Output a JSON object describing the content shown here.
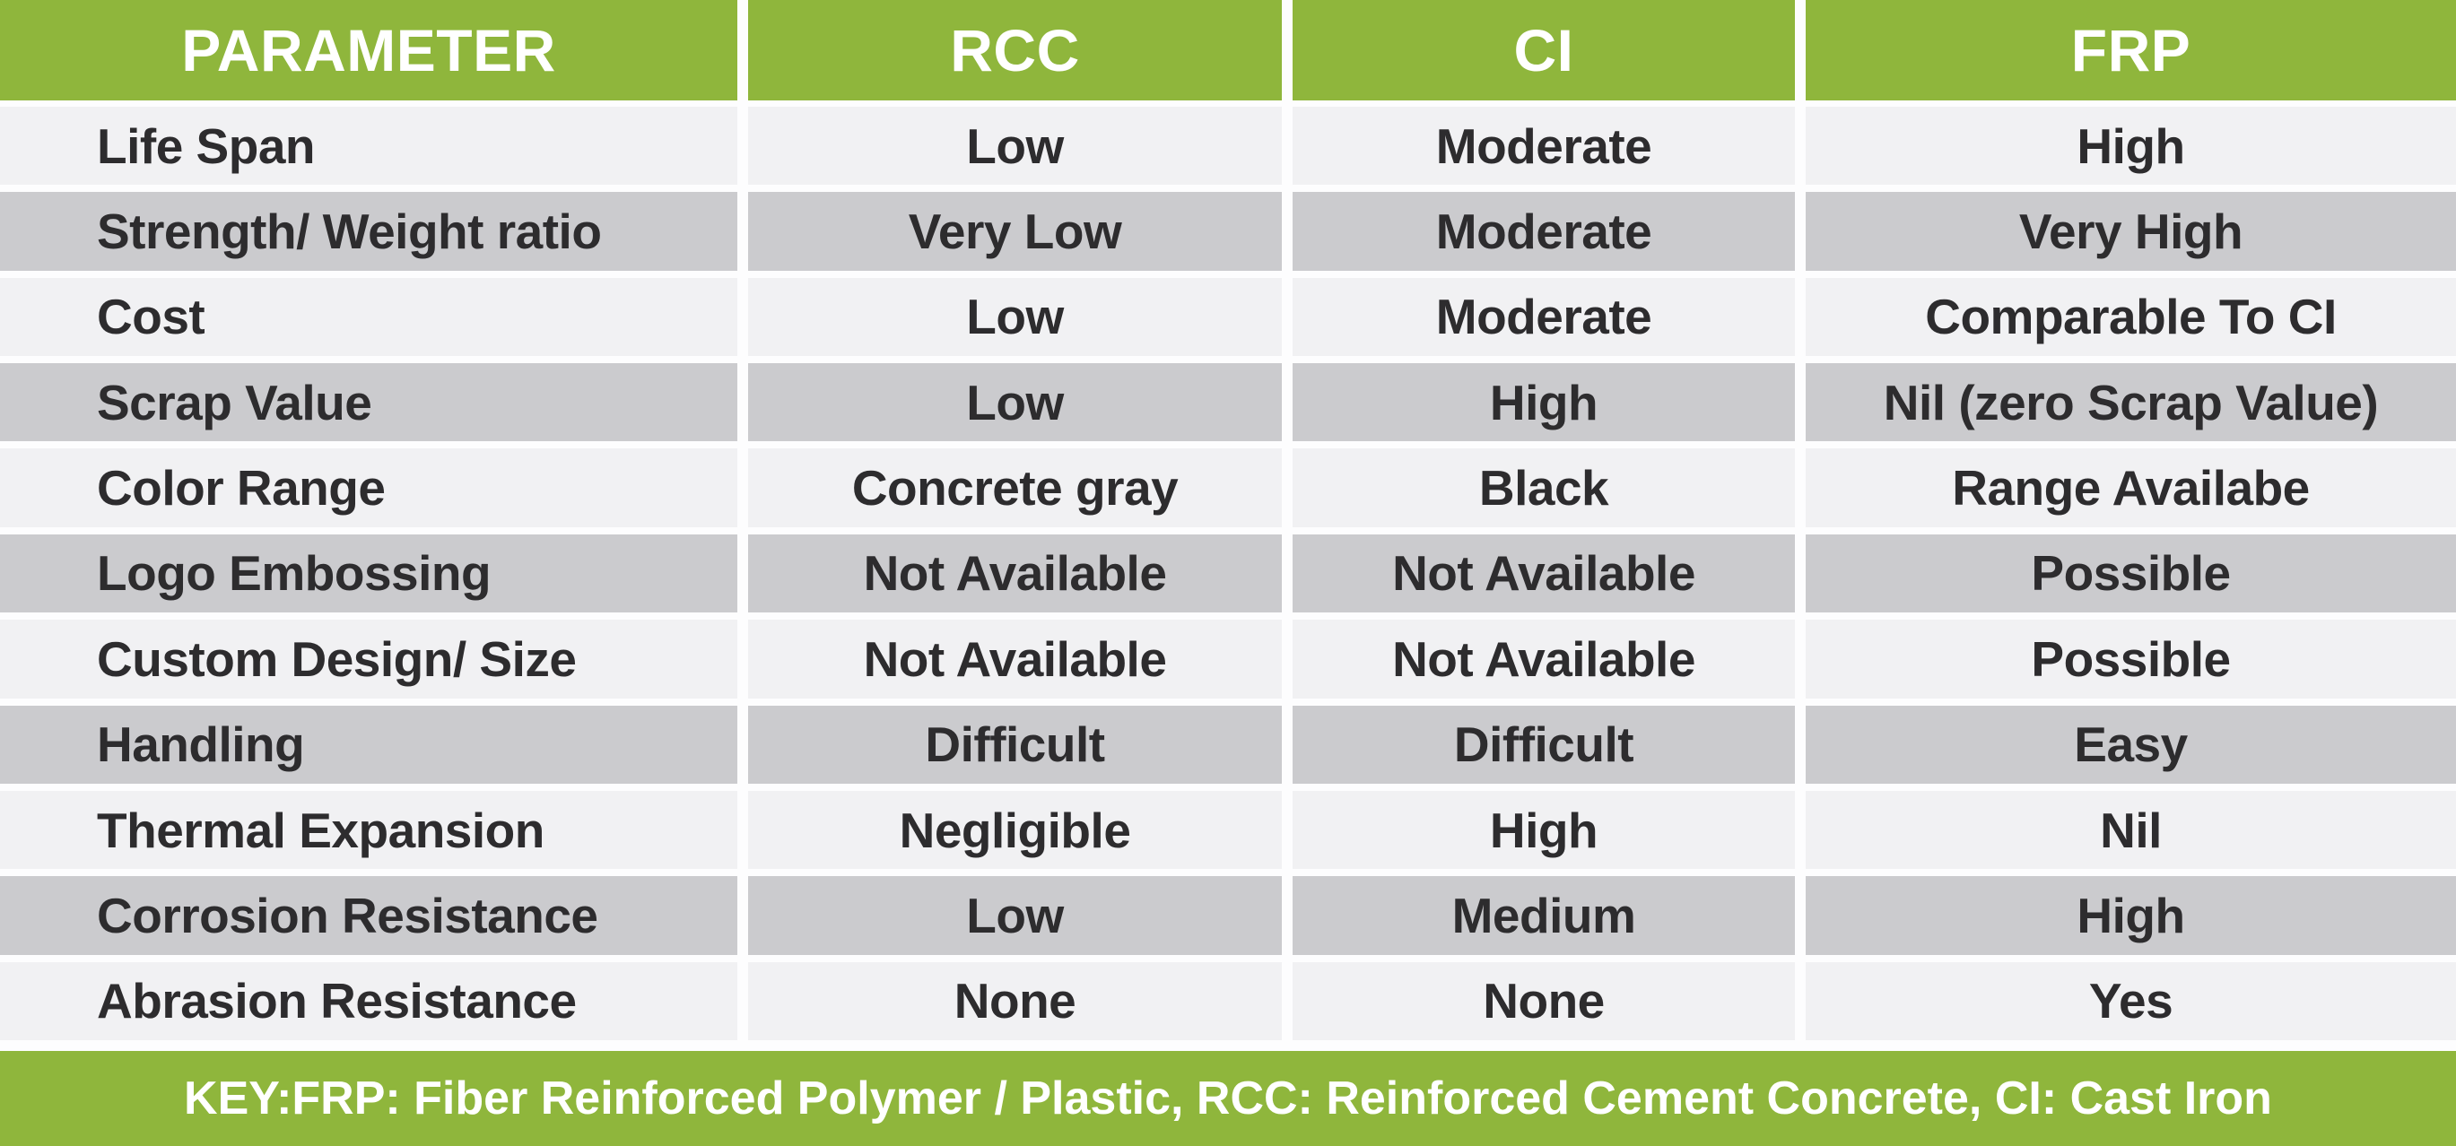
{
  "chart_data": {
    "type": "table",
    "columns": [
      "PARAMETER",
      "RCC",
      "CI",
      "FRP"
    ],
    "rows": [
      [
        "Life Span",
        "Low",
        "Moderate",
        "High"
      ],
      [
        "Strength/ Weight ratio",
        "Very Low",
        "Moderate",
        "Very High"
      ],
      [
        "Cost",
        "Low",
        "Moderate",
        "Comparable To CI"
      ],
      [
        "Scrap Value",
        "Low",
        "High",
        "Nil (zero Scrap Value)"
      ],
      [
        "Color Range",
        "Concrete gray",
        "Black",
        "Range Availabe"
      ],
      [
        "Logo Embossing",
        "Not Available",
        "Not Available",
        "Possible"
      ],
      [
        "Custom Design/ Size",
        "Not Available",
        "Not Available",
        "Possible"
      ],
      [
        "Handling",
        "Difficult",
        "Difficult",
        "Easy"
      ],
      [
        "Thermal Expansion",
        "Negligible",
        "High",
        "Nil"
      ],
      [
        "Corrosion Resistance",
        "Low",
        "Medium",
        "High"
      ],
      [
        "Abrasion Resistance",
        "None",
        "None",
        "Yes"
      ]
    ],
    "footer_key": "KEY:FRP: Fiber Reinforced Polymer / Plastic, RCC: Reinforced Cement Concrete, CI: Cast Iron",
    "layout_hints": {
      "header_position": "top",
      "row_striping": "alternating light/dark starting light",
      "first_column_alignment": "left",
      "value_columns_alignment": "center"
    },
    "colors": {
      "header_green": "#8fb63c",
      "row_light": "#f1f1f3",
      "row_dark": "#cbcbce",
      "text_dark": "#2d2c2e",
      "text_light": "#ffffff",
      "divider_white": "#fdfdfe"
    }
  }
}
